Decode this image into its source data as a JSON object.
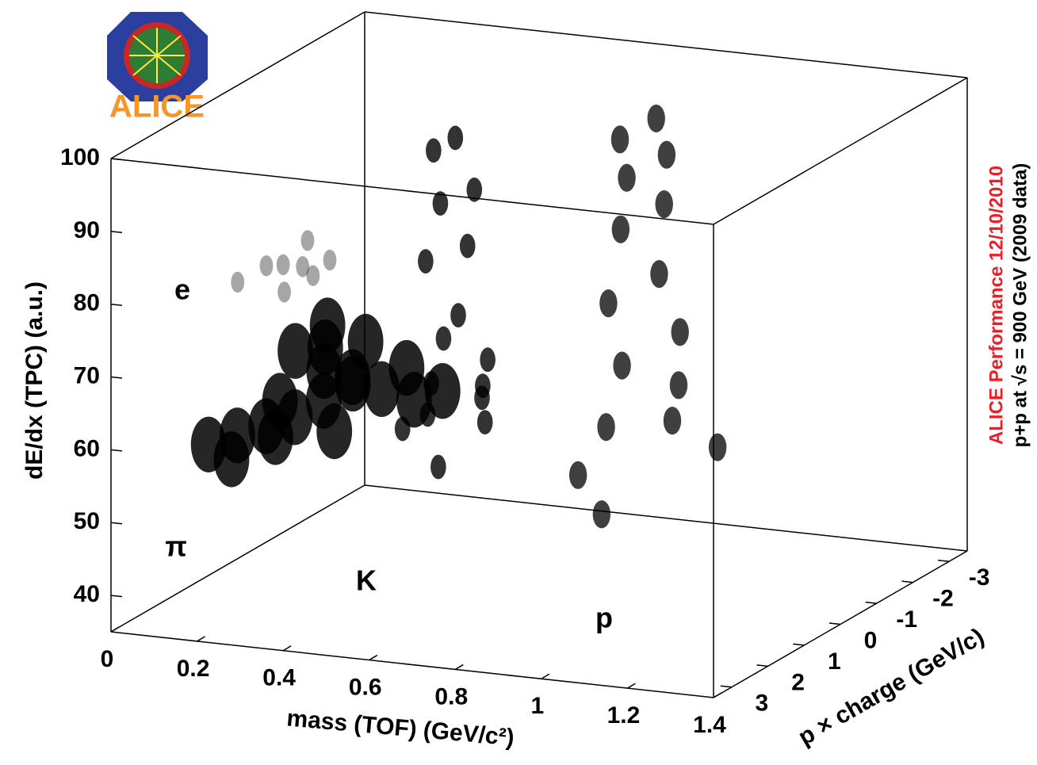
{
  "chart_data": {
    "type": "scatter3d",
    "logo_text": "ALICE",
    "performance_label": "ALICE Performance 12/10/2010",
    "dataset_label": "p+p at √s = 900 GeV (2009 data)",
    "x_label": "mass (TOF) (GeV/c²)",
    "y_label": "p × charge (GeV/c)",
    "z_label": "dE/dx (TPC) (a.u.)",
    "xlim": [
      0,
      1.4
    ],
    "xticks": [
      0,
      0.2,
      0.4,
      0.6,
      0.8,
      1,
      1.2,
      1.4
    ],
    "ylim": [
      3.5,
      -3.5
    ],
    "yticks": [
      3,
      2,
      1,
      0,
      -1,
      -2,
      -3
    ],
    "zlim": [
      35,
      100
    ],
    "zticks": [
      40,
      50,
      60,
      70,
      80,
      90,
      100
    ],
    "series": [
      {
        "name": "π",
        "color": "#000000",
        "x": [
          0.05,
          0.1,
          0.15,
          0.2,
          0.25,
          0.3,
          0.1,
          0.15,
          0.2,
          0.25,
          0.3,
          0.12,
          0.18,
          0.22,
          0.28,
          0.35,
          0.14,
          0.2,
          0.3,
          0.4
        ],
        "y": [
          1.4,
          1.2,
          1.0,
          0.8,
          0.6,
          0.4,
          -0.4,
          -0.6,
          -0.8,
          -1.0,
          -1.3,
          1.6,
          1.1,
          0.2,
          -0.2,
          -0.5,
          0.5,
          -0.1,
          0.9,
          -0.9
        ],
        "z": [
          55,
          56,
          57,
          58,
          60,
          63,
          63,
          60,
          58,
          57,
          55,
          54,
          56,
          66,
          66,
          62,
          59,
          68,
          57,
          58
        ]
      },
      {
        "name": "K",
        "color": "#000000",
        "x": [
          0.48,
          0.5,
          0.47,
          0.52,
          0.5,
          0.45,
          0.55,
          0.5,
          0.48,
          0.52,
          0.5,
          0.47,
          0.53,
          0.5,
          0.49,
          0.51
        ],
        "y": [
          0.3,
          0.35,
          0.4,
          0.5,
          0.6,
          0.8,
          1.0,
          0.7,
          -0.3,
          -0.35,
          -0.4,
          -0.5,
          -0.6,
          -0.8,
          -1.0,
          -0.7
        ],
        "z": [
          95,
          88,
          80,
          70,
          64,
          58,
          54,
          60,
          95,
          88,
          80,
          70,
          64,
          58,
          54,
          60
        ]
      },
      {
        "name": "p",
        "color": "#000000",
        "x": [
          0.93,
          0.95,
          0.94,
          0.92,
          0.96,
          0.94,
          0.9,
          0.98,
          0.93,
          0.95,
          0.94,
          0.92,
          0.96,
          0.94,
          0.9,
          0.98
        ],
        "y": [
          0.5,
          0.55,
          0.6,
          0.7,
          0.8,
          1.0,
          1.3,
          1.6,
          -0.5,
          -0.55,
          -0.6,
          -0.7,
          -0.8,
          -1.0,
          -1.3,
          -1.6
        ],
        "z": [
          100,
          95,
          88,
          78,
          70,
          62,
          56,
          52,
          100,
          95,
          88,
          78,
          70,
          62,
          56,
          52
        ]
      },
      {
        "name": "e",
        "color": "#000000",
        "x": [
          0.05,
          0.1,
          0.15,
          0.2,
          0.08,
          0.12,
          0.18,
          0.1
        ],
        "y": [
          0.6,
          0.4,
          0.5,
          0.3,
          -0.3,
          -0.5,
          -0.4,
          -0.6
        ],
        "z": [
          75,
          77,
          74,
          76,
          75,
          78,
          76,
          74
        ]
      }
    ]
  }
}
